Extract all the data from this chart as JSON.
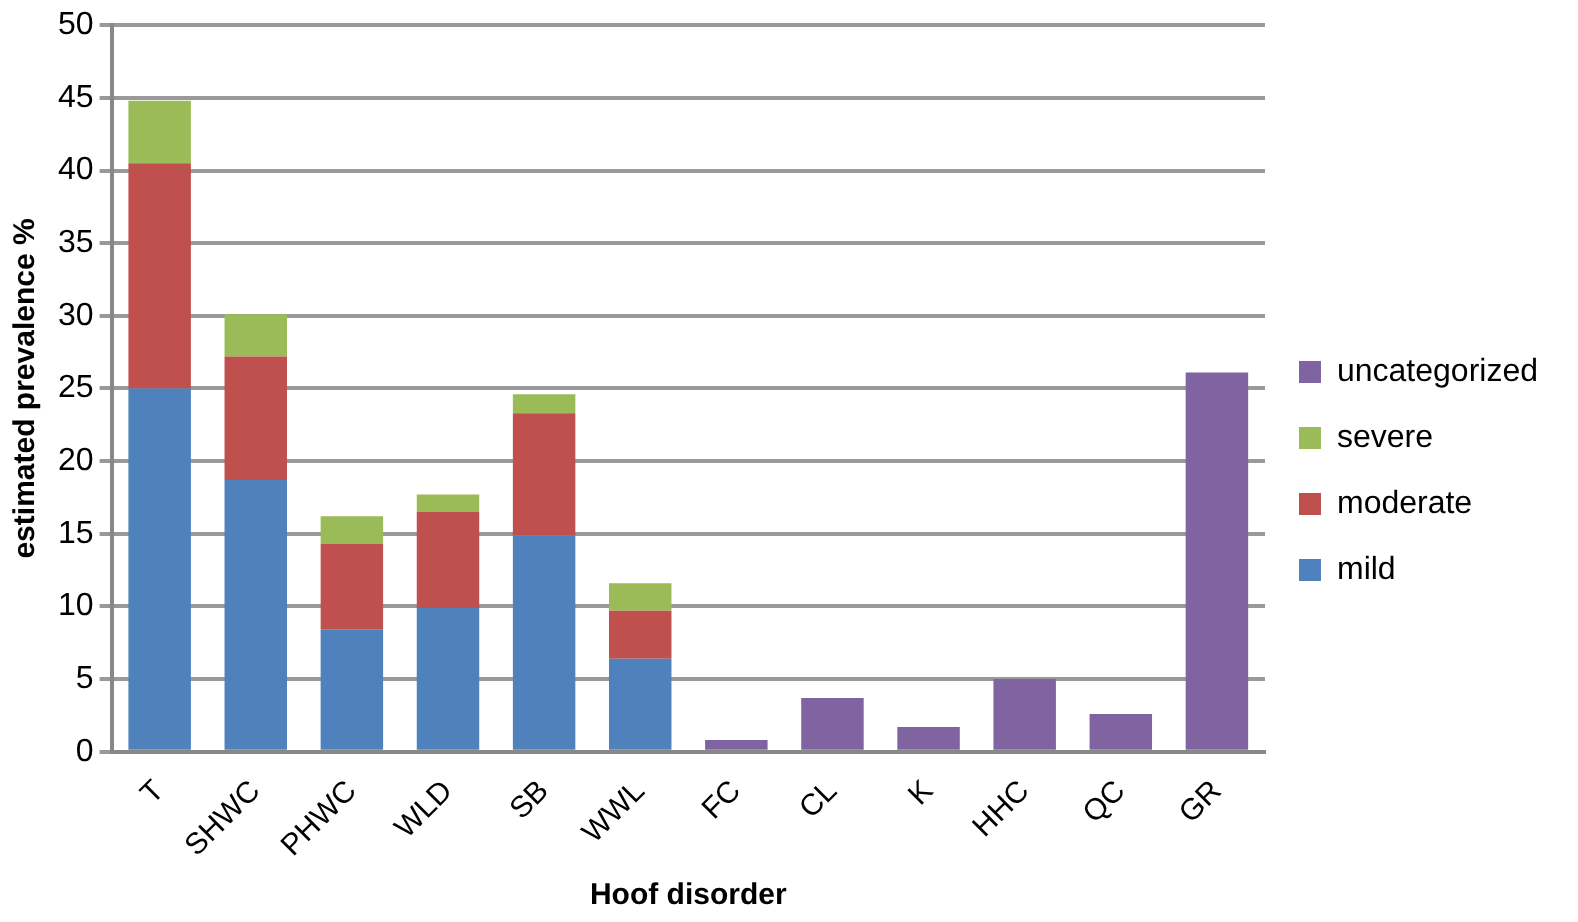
{
  "chart_data": {
    "type": "bar",
    "stacked": true,
    "xlabel": "Hoof disorder",
    "ylabel": "estimated prevalence %",
    "categories": [
      "T",
      "SHWC",
      "PHWC",
      "WLD",
      "SB",
      "WWL",
      "FC",
      "CL",
      "K",
      "HHC",
      "QC",
      "GR"
    ],
    "series": [
      {
        "name": "mild",
        "color": "#4f81bd",
        "values": [
          25.0,
          18.7,
          8.4,
          9.9,
          14.9,
          6.4,
          null,
          null,
          null,
          null,
          null,
          null
        ]
      },
      {
        "name": "moderate",
        "color": "#c0504d",
        "values": [
          15.5,
          8.5,
          5.9,
          6.6,
          8.4,
          3.3,
          null,
          null,
          null,
          null,
          null,
          null
        ]
      },
      {
        "name": "severe",
        "color": "#9bbb59",
        "values": [
          4.3,
          2.9,
          1.9,
          1.2,
          1.3,
          1.9,
          null,
          null,
          null,
          null,
          null,
          null
        ]
      },
      {
        "name": "uncategorized",
        "color": "#8064a2",
        "values": [
          null,
          null,
          null,
          null,
          null,
          null,
          0.8,
          3.7,
          1.7,
          5.0,
          2.6,
          26.1
        ]
      }
    ],
    "ylim": [
      0,
      50
    ],
    "yticks": [
      0,
      5,
      10,
      15,
      20,
      25,
      30,
      35,
      40,
      45,
      50
    ],
    "grid": "y",
    "legend": "right"
  }
}
